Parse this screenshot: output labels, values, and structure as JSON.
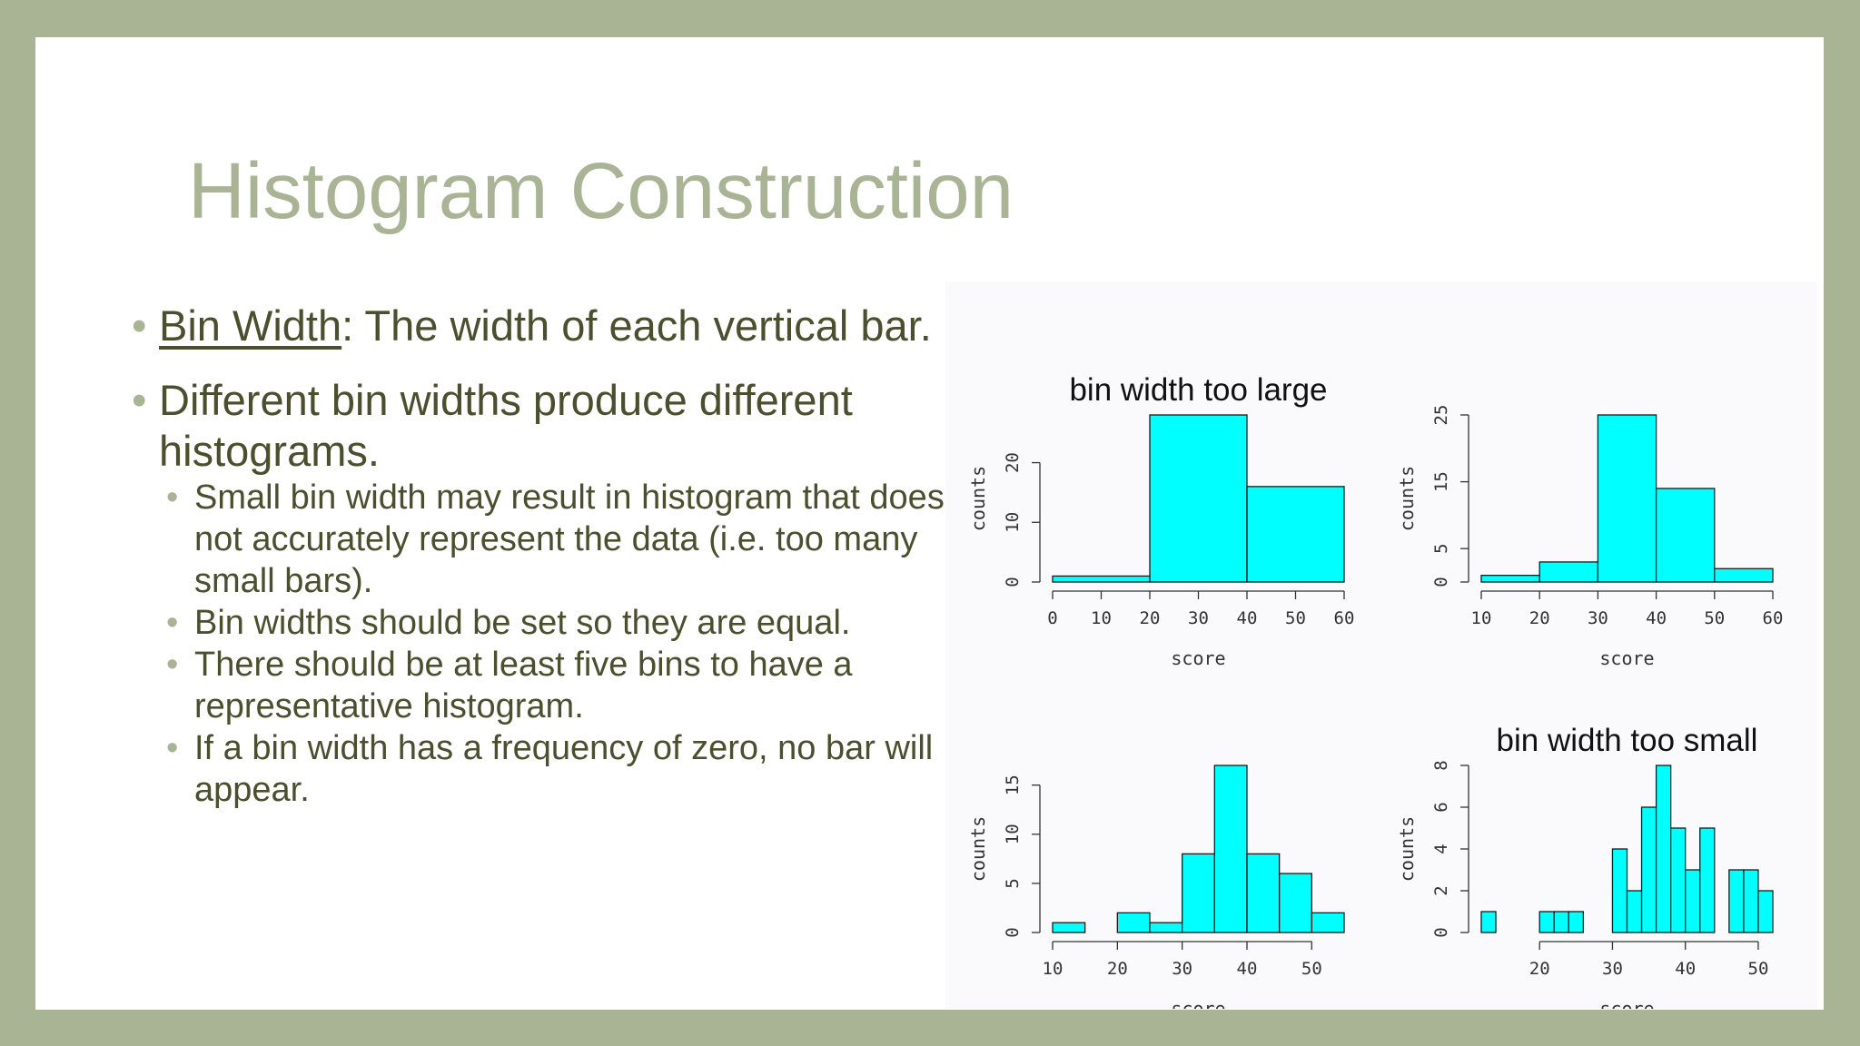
{
  "slide": {
    "title": "Histogram Construction",
    "bullets": [
      {
        "term": "Bin Width",
        "text": ": The width of each vertical bar."
      },
      {
        "text": "Different bin widths produce different histograms."
      }
    ],
    "sub_bullets": [
      "Small bin width may result in histogram that does not accurately represent the data (i.e. too many small bars).",
      "Bin widths should be set so they are equal.",
      "There should be at least five bins to have a representative histogram.",
      "If a bin width has a frequency of zero, no bar will appear."
    ]
  },
  "chart_data": [
    {
      "type": "bar",
      "title": "bin width too large",
      "xlabel": "score",
      "ylabel": "counts",
      "bin_edges": [
        0,
        20,
        40,
        60
      ],
      "values": [
        1,
        28,
        16
      ],
      "xticks": [
        0,
        10,
        20,
        30,
        40,
        50,
        60
      ],
      "yticks": [
        0,
        10,
        20
      ],
      "xlim": [
        0,
        60
      ],
      "ylim": [
        0,
        28
      ],
      "bar_color": "#00ffff"
    },
    {
      "type": "bar",
      "title": "",
      "xlabel": "score",
      "ylabel": "counts",
      "bin_edges": [
        10,
        20,
        30,
        40,
        50,
        60
      ],
      "values": [
        1,
        3,
        25,
        14,
        2
      ],
      "xticks": [
        10,
        20,
        30,
        40,
        50,
        60
      ],
      "yticks": [
        0,
        5,
        15,
        25
      ],
      "xlim": [
        10,
        60
      ],
      "ylim": [
        0,
        25
      ],
      "bar_color": "#00ffff"
    },
    {
      "type": "bar",
      "title": "",
      "xlabel": "score",
      "ylabel": "counts",
      "bin_edges": [
        10,
        15,
        20,
        25,
        30,
        35,
        40,
        45,
        50,
        55
      ],
      "values": [
        1,
        0,
        2,
        1,
        8,
        17,
        8,
        6,
        2
      ],
      "xticks": [
        10,
        20,
        30,
        40,
        50
      ],
      "yticks": [
        0,
        5,
        10,
        15
      ],
      "xlim": [
        10,
        55
      ],
      "ylim": [
        0,
        17
      ],
      "bar_color": "#00ffff"
    },
    {
      "type": "bar",
      "title": "bin width too small",
      "xlabel": "score",
      "ylabel": "counts",
      "bin_edges": [
        12,
        14,
        16,
        18,
        20,
        22,
        24,
        26,
        28,
        30,
        32,
        34,
        36,
        38,
        40,
        42,
        44,
        46,
        48,
        50,
        52
      ],
      "values": [
        1,
        0,
        0,
        0,
        1,
        1,
        1,
        0,
        0,
        4,
        2,
        6,
        8,
        5,
        3,
        5,
        0,
        3,
        3,
        2
      ],
      "xticks": [
        20,
        30,
        40,
        50
      ],
      "yticks": [
        0,
        2,
        4,
        6,
        8
      ],
      "xlim": [
        12,
        52
      ],
      "ylim": [
        0,
        8
      ],
      "bar_color": "#00ffff"
    }
  ]
}
